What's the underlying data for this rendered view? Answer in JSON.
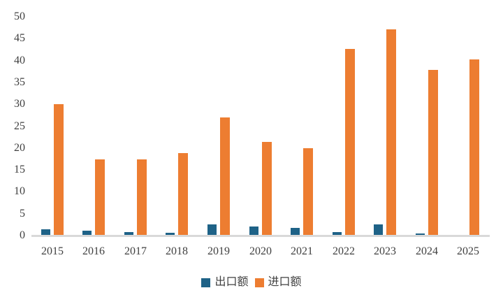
{
  "chart_data": {
    "type": "bar",
    "title": "",
    "xlabel": "",
    "ylabel": "",
    "categories": [
      "2015",
      "2016",
      "2017",
      "2018",
      "2019",
      "2020",
      "2021",
      "2022",
      "2023",
      "2024",
      "2025"
    ],
    "series": [
      {
        "name": "出口额",
        "color": "#1E6287",
        "values": [
          1.5,
          1.1,
          0.8,
          0.7,
          2.5,
          2.1,
          1.8,
          0.8,
          2.5,
          0.4,
          0
        ]
      },
      {
        "name": "进口额",
        "color": "#ED7D31",
        "values": [
          30.1,
          17.4,
          17.4,
          18.9,
          27.0,
          21.4,
          19.9,
          42.7,
          47.2,
          37.9,
          40.3
        ]
      }
    ],
    "ylim": [
      0,
      50
    ],
    "yticks": [
      0,
      5,
      10,
      15,
      20,
      25,
      30,
      35,
      40,
      45,
      50
    ],
    "grid": false,
    "legend_position": "bottom"
  },
  "colors": {
    "background": "#FFFFFF",
    "axis_line": "#D9D9D9",
    "label_text": "#404040",
    "export_series": "#1E6287",
    "import_series": "#ED7D31"
  }
}
